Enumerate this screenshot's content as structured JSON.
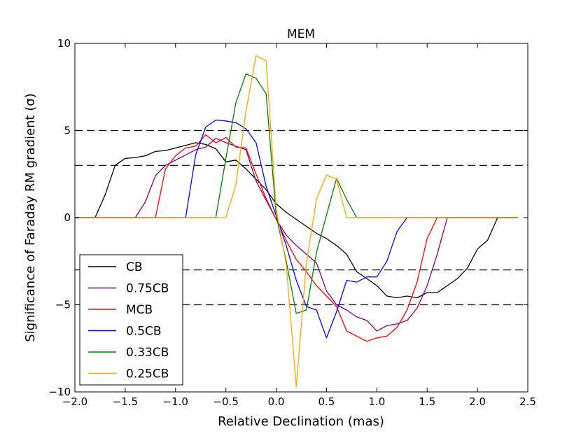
{
  "chart_data": {
    "type": "line",
    "title": "MEM",
    "xlabel": "Relative Declination (mas)",
    "ylabel": "Significance of Faraday RM gradient (σ)",
    "xlim": [
      -2.0,
      2.5
    ],
    "ylim": [
      -10,
      10
    ],
    "x_ticks": [
      -2.0,
      -1.5,
      -1.0,
      -0.5,
      0.0,
      0.5,
      1.0,
      1.5,
      2.0,
      2.5
    ],
    "x_tick_labels": [
      "−2.0",
      "−1.5",
      "−1.0",
      "−0.5",
      "0.0",
      "0.5",
      "1.0",
      "1.5",
      "2.0",
      "2.5"
    ],
    "y_ticks": [
      -10,
      -5,
      0,
      5,
      10
    ],
    "y_tick_labels": [
      "−10",
      "−5",
      "0",
      "5",
      "10"
    ],
    "reference_lines": [
      5,
      3,
      -3,
      -5
    ],
    "legend_position": "lower-left",
    "series": [
      {
        "name": "CB",
        "color": "#000000",
        "x": [
          -2.0,
          -1.8,
          -1.7,
          -1.6,
          -1.5,
          -1.4,
          -1.3,
          -1.2,
          -1.1,
          -1.0,
          -0.9,
          -0.8,
          -0.7,
          -0.6,
          -0.5,
          -0.4,
          -0.3,
          -0.2,
          -0.1,
          0.0,
          0.1,
          0.2,
          0.3,
          0.4,
          0.5,
          0.6,
          0.7,
          0.8,
          0.9,
          1.0,
          1.1,
          1.2,
          1.3,
          1.4,
          1.5,
          1.6,
          1.7,
          1.8,
          1.9,
          2.0,
          2.1,
          2.2,
          2.4
        ],
        "y": [
          0,
          0,
          1.3,
          3.0,
          3.4,
          3.45,
          3.55,
          3.8,
          3.85,
          4.0,
          4.15,
          4.3,
          4.2,
          3.95,
          3.2,
          3.3,
          2.8,
          2.2,
          1.6,
          0.8,
          0.3,
          -0.1,
          -0.5,
          -0.9,
          -1.2,
          -1.6,
          -2.1,
          -3.1,
          -3.5,
          -3.9,
          -4.5,
          -4.6,
          -4.5,
          -4.6,
          -4.3,
          -4.3,
          -3.9,
          -3.5,
          -2.9,
          -1.8,
          -1.3,
          0,
          0
        ]
      },
      {
        "name": "0.75CB",
        "color": "#800080",
        "x": [
          -2.0,
          -1.4,
          -1.3,
          -1.2,
          -1.1,
          -1.0,
          -0.9,
          -0.8,
          -0.7,
          -0.6,
          -0.5,
          -0.4,
          -0.3,
          -0.2,
          -0.1,
          0.0,
          0.1,
          0.2,
          0.3,
          0.4,
          0.5,
          0.6,
          0.7,
          0.8,
          0.9,
          1.0,
          1.1,
          1.2,
          1.3,
          1.4,
          1.5,
          1.6,
          1.7,
          2.4
        ],
        "y": [
          0,
          0,
          0.9,
          2.4,
          3.0,
          3.3,
          3.6,
          3.9,
          4.05,
          4.55,
          4.3,
          4.1,
          3.9,
          2.1,
          1.0,
          -0.1,
          -1.0,
          -1.6,
          -2.1,
          -2.6,
          -4.2,
          -5.0,
          -5.3,
          -5.7,
          -5.9,
          -6.5,
          -6.2,
          -6.1,
          -5.9,
          -5.2,
          -3.9,
          -2.1,
          0,
          0
        ]
      },
      {
        "name": "MCB",
        "color": "#ff0000",
        "x": [
          -2.0,
          -1.2,
          -1.1,
          -1.0,
          -0.9,
          -0.8,
          -0.7,
          -0.6,
          -0.5,
          -0.4,
          -0.3,
          -0.2,
          -0.1,
          0.0,
          0.1,
          0.2,
          0.3,
          0.4,
          0.5,
          0.6,
          0.7,
          0.8,
          0.9,
          1.0,
          1.1,
          1.2,
          1.3,
          1.4,
          1.5,
          1.6,
          2.4
        ],
        "y": [
          0,
          0,
          2.8,
          3.55,
          4.0,
          4.1,
          4.75,
          4.3,
          4.6,
          4.05,
          4.0,
          2.5,
          1.1,
          -0.1,
          -1.3,
          -2.4,
          -3.1,
          -3.9,
          -4.5,
          -5.1,
          -6.5,
          -6.8,
          -7.1,
          -6.9,
          -6.8,
          -6.3,
          -5.3,
          -3.7,
          -1.2,
          0,
          0
        ]
      },
      {
        "name": "0.5CB",
        "color": "#0000ff",
        "x": [
          -2.0,
          -0.9,
          -0.8,
          -0.7,
          -0.6,
          -0.5,
          -0.4,
          -0.3,
          -0.2,
          -0.1,
          0.0,
          0.1,
          0.2,
          0.3,
          0.4,
          0.5,
          0.6,
          0.7,
          0.8,
          0.9,
          1.0,
          1.1,
          1.2,
          1.3,
          2.4
        ],
        "y": [
          0,
          0,
          3.6,
          5.2,
          5.6,
          5.55,
          5.45,
          5.1,
          4.3,
          1.8,
          0.1,
          -1.6,
          -3.6,
          -5.1,
          -5.3,
          -6.9,
          -5.4,
          -3.6,
          -3.7,
          -3.4,
          -3.4,
          -2.5,
          -0.8,
          0,
          0
        ]
      },
      {
        "name": "0.33CB",
        "color": "#008000",
        "x": [
          -2.0,
          -0.6,
          -0.5,
          -0.4,
          -0.3,
          -0.2,
          -0.1,
          0.0,
          0.1,
          0.2,
          0.3,
          0.4,
          0.5,
          0.6,
          0.7,
          0.8,
          2.4
        ],
        "y": [
          0,
          0,
          3.4,
          6.6,
          8.25,
          8.0,
          7.1,
          0.1,
          -2.5,
          -5.5,
          -5.3,
          -2.0,
          0.15,
          2.25,
          1.05,
          0,
          0
        ]
      },
      {
        "name": "0.25CB",
        "color": "#ffa500",
        "x": [
          -2.0,
          -0.5,
          -0.4,
          -0.3,
          -0.2,
          -0.1,
          0.0,
          0.1,
          0.2,
          0.3,
          0.4,
          0.5,
          0.6,
          0.7,
          2.4
        ],
        "y": [
          0,
          0,
          1.9,
          6.1,
          9.3,
          9.0,
          0.5,
          -2.7,
          -9.7,
          -2.6,
          1.05,
          2.45,
          2.2,
          0,
          0
        ]
      }
    ]
  }
}
